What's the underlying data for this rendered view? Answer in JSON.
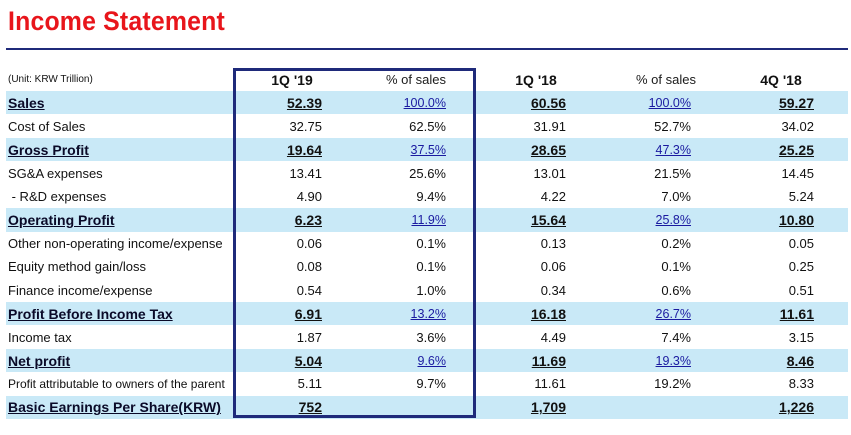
{
  "title": "Income Statement",
  "header": {
    "unit": "(Unit: KRW Trillion)",
    "q1_19": "1Q '19",
    "pct1": "% of sales",
    "q1_18": "1Q '18",
    "pct2": "% of sales",
    "q4_18": "4Q '18"
  },
  "rows": [
    {
      "label": "Sales",
      "q1_19": "52.39",
      "pct1": "100.0%",
      "q1_18": "60.56",
      "pct2": "100.0%",
      "q4_18": "59.27"
    },
    {
      "label": "Cost of Sales",
      "q1_19": "32.75",
      "pct1": "62.5%",
      "q1_18": "31.91",
      "pct2": "52.7%",
      "q4_18": "34.02"
    },
    {
      "label": "Gross Profit",
      "q1_19": "19.64",
      "pct1": "37.5%",
      "q1_18": "28.65",
      "pct2": "47.3%",
      "q4_18": "25.25"
    },
    {
      "label": "SG&A expenses",
      "q1_19": "13.41",
      "pct1": "25.6%",
      "q1_18": "13.01",
      "pct2": "21.5%",
      "q4_18": "14.45"
    },
    {
      "label": " - R&D expenses",
      "q1_19": "4.90",
      "pct1": "9.4%",
      "q1_18": "4.22",
      "pct2": "7.0%",
      "q4_18": "5.24"
    },
    {
      "label": "Operating Profit",
      "q1_19": "6.23",
      "pct1": "11.9%",
      "q1_18": "15.64",
      "pct2": "25.8%",
      "q4_18": "10.80"
    },
    {
      "label": "Other non-operating income/expense",
      "q1_19": "0.06",
      "pct1": "0.1%",
      "q1_18": "0.13",
      "pct2": "0.2%",
      "q4_18": "0.05"
    },
    {
      "label": "Equity method gain/loss",
      "q1_19": "0.08",
      "pct1": "0.1%",
      "q1_18": "0.06",
      "pct2": "0.1%",
      "q4_18": "0.25"
    },
    {
      "label": "Finance income/expense",
      "q1_19": "0.54",
      "pct1": "1.0%",
      "q1_18": "0.34",
      "pct2": "0.6%",
      "q4_18": "0.51"
    },
    {
      "label": "Profit Before Income Tax",
      "q1_19": "6.91",
      "pct1": "13.2%",
      "q1_18": "16.18",
      "pct2": "26.7%",
      "q4_18": "11.61"
    },
    {
      "label": "Income tax",
      "q1_19": "1.87",
      "pct1": "3.6%",
      "q1_18": "4.49",
      "pct2": "7.4%",
      "q4_18": "3.15"
    },
    {
      "label": "Net profit",
      "q1_19": "5.04",
      "pct1": "9.6%",
      "q1_18": "11.69",
      "pct2": "19.3%",
      "q4_18": "8.46"
    },
    {
      "label": "Profit attributable to owners of the parent",
      "q1_19": "5.11",
      "pct1": "9.7%",
      "q1_18": "11.61",
      "pct2": "19.2%",
      "q4_18": "8.33"
    },
    {
      "label": "Basic Earnings Per Share(KRW)",
      "q1_19": "752",
      "pct1": "",
      "q1_18": "1,709",
      "pct2": "",
      "q4_18": "1,226"
    }
  ],
  "colors": {
    "title": "#e8151b",
    "rule": "#1f2a7a",
    "highlight": "#c9e9f7",
    "frame": "#1f2a7a"
  }
}
